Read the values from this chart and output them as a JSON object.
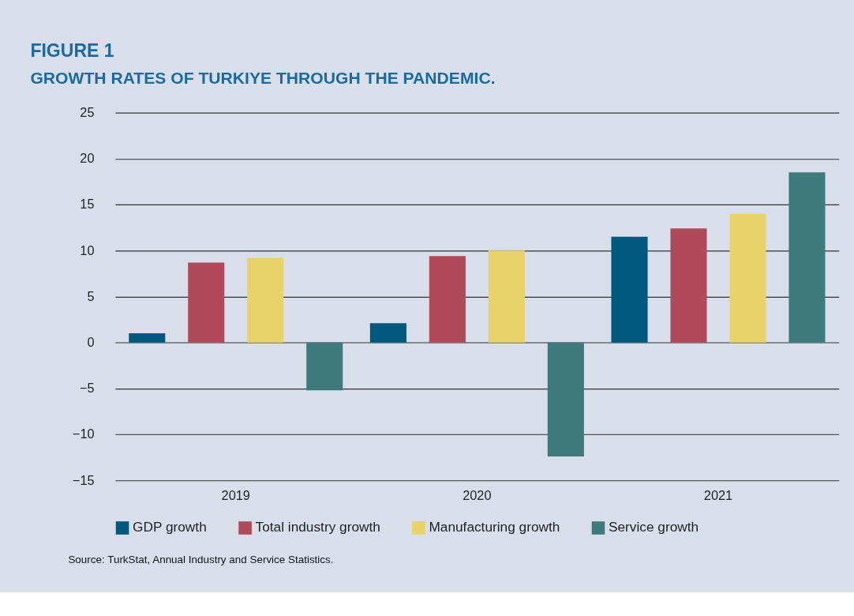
{
  "chart_data": {
    "type": "bar",
    "title": "FIGURE 1",
    "subtitle": "GROWTH RATES OF TURKIYE THROUGH THE PANDEMIC.",
    "categories": [
      "2019",
      "2020",
      "2021"
    ],
    "series": [
      {
        "name": "GDP growth",
        "color": "#00587c",
        "values": [
          1.0,
          2.1,
          11.5
        ]
      },
      {
        "name": "Total industry growth",
        "color": "#b04a5a",
        "values": [
          8.7,
          9.4,
          12.4
        ]
      },
      {
        "name": "Manufacturing growth",
        "color": "#e8d36a",
        "values": [
          9.2,
          10.0,
          14.0
        ]
      },
      {
        "name": "Service growth",
        "color": "#3e7a7b",
        "values": [
          -5.2,
          -12.4,
          18.5
        ]
      }
    ],
    "ylim": [
      -15,
      25
    ],
    "yticks": [
      -15,
      -10,
      -5,
      0,
      5,
      10,
      15,
      20,
      25
    ],
    "grid": "y",
    "legend": "bottom",
    "annotations": [
      "Source: TurkStat, Annual Industry and Service Statistics."
    ]
  }
}
